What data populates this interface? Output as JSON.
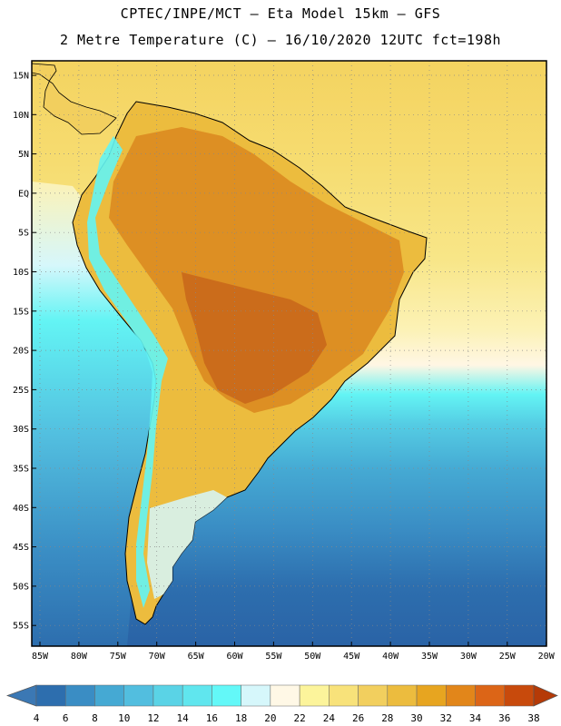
{
  "header": {
    "line1": "CPTEC/INPE/MCT –  Eta Model 15km – GFS",
    "line2": "2 Metre Temperature (C) – 16/10/2020 12UTC fct=198h"
  },
  "map": {
    "lat_labels": [
      "15N",
      "10N",
      "5N",
      "EQ",
      "5S",
      "10S",
      "15S",
      "20S",
      "25S",
      "30S",
      "35S",
      "40S",
      "45S",
      "50S",
      "55S"
    ],
    "lon_labels": [
      "85W",
      "80W",
      "75W",
      "70W",
      "65W",
      "60W",
      "55W",
      "50W",
      "45W",
      "40W",
      "35W",
      "30W",
      "25W",
      "20W"
    ]
  },
  "colorbar": {
    "labels": [
      "4",
      "6",
      "8",
      "10",
      "12",
      "14",
      "16",
      "18",
      "20",
      "22",
      "24",
      "26",
      "28",
      "30",
      "32",
      "34",
      "36",
      "38"
    ],
    "colors": [
      "#3b78b4",
      "#2d6eae",
      "#3a8dc4",
      "#45a9d3",
      "#52bedf",
      "#5ad3e6",
      "#60e6ee",
      "#63f8f8",
      "#d6f7fb",
      "#fff8e6",
      "#fcf49b",
      "#f8e27a",
      "#f2cf5e",
      "#ecbc3e",
      "#e7a520",
      "#e2861a",
      "#dc6517",
      "#c84a0c",
      "#b53a07"
    ]
  }
}
